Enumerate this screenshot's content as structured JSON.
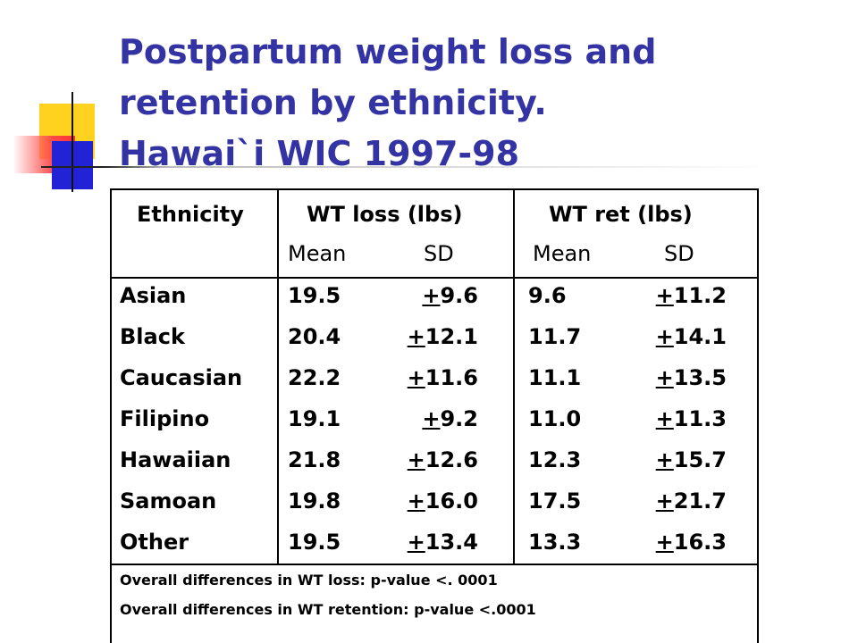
{
  "slide": {
    "title_lines": [
      "Postpartum weight loss and",
      "retention by ethnicity.",
      "Hawai`i WIC 1997-98"
    ]
  },
  "table": {
    "headers": {
      "ethnicity": "Ethnicity",
      "wt_loss": "WT loss (lbs)",
      "wt_ret": "WT ret (lbs)",
      "mean": "Mean",
      "sd": "SD"
    },
    "rows": [
      {
        "ethnicity": "Asian",
        "loss_mean": "19.5",
        "loss_sd": "9.6",
        "ret_mean": "9.6",
        "ret_sd": "11.2"
      },
      {
        "ethnicity": "Black",
        "loss_mean": "20.4",
        "loss_sd": "12.1",
        "ret_mean": "11.7",
        "ret_sd": "14.1"
      },
      {
        "ethnicity": "Caucasian",
        "loss_mean": "22.2",
        "loss_sd": "11.6",
        "ret_mean": "11.1",
        "ret_sd": "13.5"
      },
      {
        "ethnicity": "Filipino",
        "loss_mean": "19.1",
        "loss_sd": "9.2",
        "ret_mean": "11.0",
        "ret_sd": "11.3"
      },
      {
        "ethnicity": "Hawaiian",
        "loss_mean": "21.8",
        "loss_sd": "12.6",
        "ret_mean": "12.3",
        "ret_sd": "15.7"
      },
      {
        "ethnicity": "Samoan",
        "loss_mean": "19.8",
        "loss_sd": "16.0",
        "ret_mean": "17.5",
        "ret_sd": "21.7"
      },
      {
        "ethnicity": "Other",
        "loss_mean": "19.5",
        "loss_sd": "13.4",
        "ret_mean": "13.3",
        "ret_sd": "16.3"
      }
    ],
    "pm_symbol": "+",
    "footnotes": [
      "Overall differences in WT loss: p-value <. 0001",
      "Overall differences in WT retention: p-value <.0001"
    ]
  },
  "colors": {
    "title": "#3333a3",
    "deco_yellow": "#ffd21f",
    "deco_blue": "#2323d6",
    "deco_red": "#ff4a4a"
  }
}
